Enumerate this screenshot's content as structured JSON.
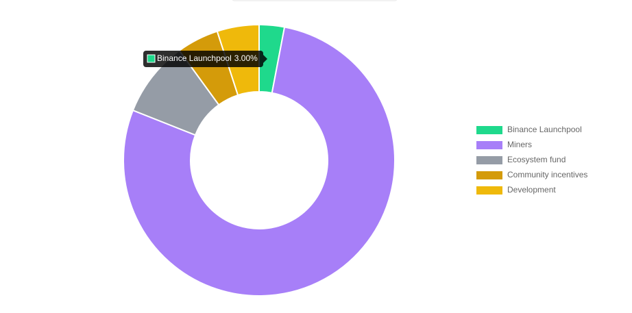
{
  "chart_data": {
    "type": "doughnut",
    "categories": [
      "Binance Launchpool",
      "Miners",
      "Ecosystem fund",
      "Community incentives",
      "Development"
    ],
    "values": [
      3,
      78,
      9,
      5,
      5
    ],
    "value_labels": [
      "3.00%",
      null,
      null,
      null,
      null
    ],
    "colors": [
      "#1fd98c",
      "#a77ff8",
      "#959ca6",
      "#d49b0a",
      "#efb90b"
    ],
    "legend": "right",
    "tooltip_index": 0
  }
}
